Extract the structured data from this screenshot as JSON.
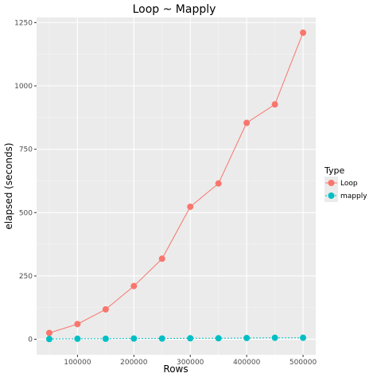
{
  "chart_data": {
    "type": "line",
    "title": "Loop  ~ Mapply",
    "xlabel": "Rows",
    "ylabel": "elapsed (seconds)",
    "xlim": [
      27500,
      522500
    ],
    "ylim": [
      -61,
      1270
    ],
    "x_ticks": [
      100000,
      200000,
      300000,
      400000,
      500000
    ],
    "x_tick_labels": [
      "100000",
      "200000",
      "300000",
      "400000",
      "500000"
    ],
    "y_ticks": [
      0,
      250,
      500,
      750,
      1000,
      1250
    ],
    "y_tick_labels": [
      "0",
      "250",
      "500",
      "750",
      "1000",
      "1250"
    ],
    "grid": true,
    "legend": {
      "title": "Type",
      "placement": "right"
    },
    "x": [
      50000,
      100000,
      150000,
      200000,
      250000,
      300000,
      350000,
      400000,
      450000,
      500000
    ],
    "series": [
      {
        "name": "Loop",
        "color": "#F8766D",
        "line_style": "solid",
        "values": [
          25,
          60,
          118,
          210,
          318,
          523,
          615,
          854,
          927,
          1210
        ]
      },
      {
        "name": "mapply",
        "color": "#00BFC4",
        "line_style": "dashed",
        "values": [
          1,
          2,
          2,
          3,
          3,
          4,
          4,
          5,
          6,
          6
        ]
      }
    ]
  }
}
